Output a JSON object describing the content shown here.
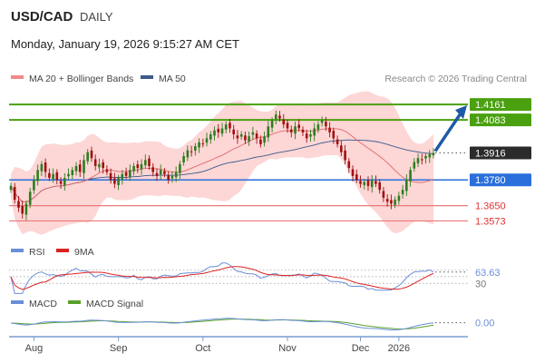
{
  "header": {
    "pair": "USD/CAD",
    "period": "DAILY",
    "datetime": "Monday, January 19, 2026 9:15:27 AM CET"
  },
  "legend_main": {
    "ma20_label": "MA 20 + Bollinger Bands",
    "ma50_label": "MA 50",
    "credit": "Research © 2026 Trading Central"
  },
  "legend_rsi": {
    "rsi_label": "RSI",
    "ma9_label": "9MA"
  },
  "legend_macd": {
    "macd_label": "MACD",
    "signal_label": "MACD Signal"
  },
  "colors": {
    "up_candle": "#2e7d1f",
    "down_candle": "#a01010",
    "band_fill": "#fdd6d6",
    "ma20": "#e06a6a",
    "ma50": "#3d5a8a",
    "resistance": "#4aa00f",
    "pivot": "#2a6fdb",
    "support": "#e87a7a",
    "arrow": "#1f5aa6",
    "rsi": "#6a8fd8",
    "rsi_ma": "#d22",
    "macd": "#6a8fd8",
    "macd_signal": "#5aa02a"
  },
  "chart_data": {
    "type": "candlestick",
    "x_labels": [
      "Aug",
      "Sep",
      "Oct",
      "Nov",
      "Dec",
      "2026"
    ],
    "ylim": [
      1.352,
      1.423
    ],
    "levels": [
      {
        "value": 1.4161,
        "label": "1.4161",
        "kind": "resistance"
      },
      {
        "value": 1.4083,
        "label": "1.4083",
        "kind": "resistance"
      },
      {
        "value": 1.3916,
        "label": "1.3916",
        "kind": "last"
      },
      {
        "value": 1.378,
        "label": "1.3780",
        "kind": "pivot"
      },
      {
        "value": 1.365,
        "label": "1.3650",
        "kind": "support"
      },
      {
        "value": 1.3573,
        "label": "1.3573",
        "kind": "support"
      }
    ],
    "closes": [
      1.375,
      1.368,
      1.364,
      1.361,
      1.366,
      1.372,
      1.378,
      1.383,
      1.386,
      1.382,
      1.379,
      1.381,
      1.378,
      1.376,
      1.379,
      1.381,
      1.383,
      1.385,
      1.382,
      1.388,
      1.392,
      1.389,
      1.385,
      1.386,
      1.384,
      1.382,
      1.378,
      1.376,
      1.379,
      1.381,
      1.38,
      1.383,
      1.385,
      1.384,
      1.386,
      1.388,
      1.385,
      1.382,
      1.38,
      1.383,
      1.381,
      1.378,
      1.38,
      1.382,
      1.386,
      1.39,
      1.393,
      1.392,
      1.395,
      1.397,
      1.396,
      1.399,
      1.401,
      1.403,
      1.402,
      1.404,
      1.406,
      1.404,
      1.401,
      1.399,
      1.401,
      1.398,
      1.4,
      1.402,
      1.399,
      1.396,
      1.4,
      1.405,
      1.408,
      1.411,
      1.409,
      1.406,
      1.404,
      1.402,
      1.405,
      1.404,
      1.402,
      1.399,
      1.401,
      1.404,
      1.406,
      1.408,
      1.405,
      1.402,
      1.399,
      1.396,
      1.392,
      1.388,
      1.384,
      1.38,
      1.378,
      1.376,
      1.377,
      1.375,
      1.378,
      1.376,
      1.373,
      1.369,
      1.367,
      1.366,
      1.368,
      1.37,
      1.373,
      1.378,
      1.383,
      1.387,
      1.389,
      1.388,
      1.39,
      1.391,
      1.3916
    ],
    "ma_period_20_note": "",
    "rsi": {
      "last": 63.63,
      "levels": [
        70,
        50,
        30
      ],
      "labels": [
        "63.63",
        "30"
      ]
    },
    "macd": {
      "last": 0.0,
      "label": "0.00"
    }
  }
}
